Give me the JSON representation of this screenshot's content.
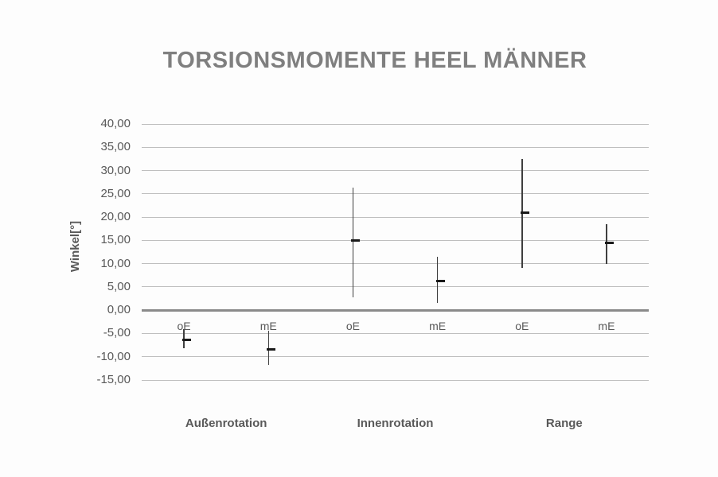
{
  "chart_data": {
    "type": "scatter",
    "subtype": "mean-with-error-bars",
    "title": "TORSIONSMOMENTE HEEL MÄNNER",
    "xlabel": "",
    "ylabel": "Winkel[°]",
    "ylim": [
      -15,
      40
    ],
    "ytick_step": 5,
    "yticks": [
      40,
      35,
      30,
      25,
      20,
      15,
      10,
      5,
      0,
      -5,
      -10,
      -15
    ],
    "ytick_labels": [
      "40,00",
      "35,00",
      "30,00",
      "25,00",
      "20,00",
      "15,00",
      "10,00",
      "5,00",
      "0,00",
      "-5,00",
      "-10,00",
      "-15,00"
    ],
    "grid": true,
    "legend": false,
    "groups": [
      {
        "label": "Außenrotation",
        "points": [
          {
            "label": "oE",
            "mean": -6.4,
            "hi": -4.0,
            "lo": -8.2
          },
          {
            "label": "mE",
            "mean": -8.4,
            "hi": -4.4,
            "lo": -11.7
          }
        ]
      },
      {
        "label": "Innenrotation",
        "points": [
          {
            "label": "oE",
            "mean": 15.0,
            "hi": 26.4,
            "lo": 2.8
          },
          {
            "label": "mE",
            "mean": 6.3,
            "hi": 11.4,
            "lo": 1.6
          }
        ]
      },
      {
        "label": "Range",
        "points": [
          {
            "label": "oE",
            "mean": 21.0,
            "hi": 32.4,
            "lo": 9.0
          },
          {
            "label": "mE",
            "mean": 14.4,
            "hi": 18.4,
            "lo": 9.9
          }
        ]
      }
    ],
    "colors": {
      "background": "#fdfdfd",
      "title": "#7f7f7f",
      "labels": "#595959",
      "grid": "#bfbfbf",
      "zero_line": "#8a8a8a",
      "error_bar": "#3f3f3f",
      "mean_tick": "#1a1a1a"
    }
  }
}
